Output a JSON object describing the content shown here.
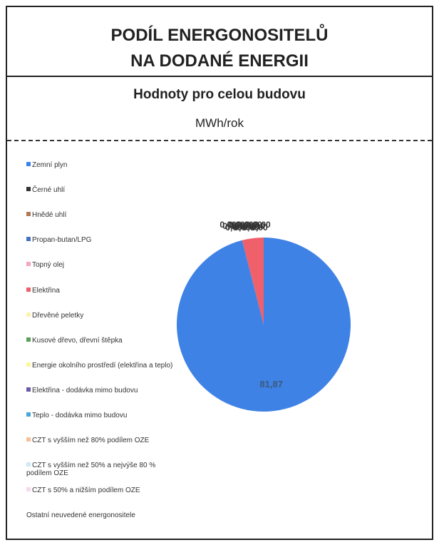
{
  "header": {
    "title_line1": "PODÍL ENERGONOSITELŮ",
    "title_line2": "NA DODANÉ ENERGII"
  },
  "chart_data": {
    "type": "pie",
    "title": "Hodnoty pro celou budovu",
    "subtitle": "MWh/rok",
    "categories": [
      "Zemní plyn",
      "Černé uhlí",
      "Hnědé uhlí",
      "Propan-butan/LPG",
      "Topný olej",
      "Elektřina",
      "Dřevěné peletky",
      "Kusové dřevo, dřevní štěpka",
      "Energie okolního prostředí (elektřina a teplo)",
      "Elektřina - dodávka mimo budovu",
      "Teplo - dodávka mimo budovu",
      "CZT s vyšším než 80% podílem OZE",
      "CZT  s vyšším než 50% a nejvýše 80 % podílem OZE",
      "CZT s 50% a nižším podílem OZE",
      "Ostatní neuvedené energonositele"
    ],
    "values": [
      81.87,
      0,
      0,
      0,
      0,
      3.4,
      0,
      0,
      0,
      0,
      0,
      0,
      0,
      0,
      0
    ],
    "value_labels": [
      "81,87",
      "0,00",
      "0,00",
      "0,00",
      "0,00",
      null,
      "0,00",
      "0,00",
      "0,00",
      "0,00",
      "0,00",
      "0,00",
      "0,00",
      "0,00",
      "0,00"
    ],
    "colors": [
      "#3f82e6",
      "#333333",
      "#b07a5a",
      "#4472c4",
      "#f4a6c8",
      "#f0606a",
      "#fff2b0",
      "#5aa05a",
      "#fff59a",
      "#6a5aa8",
      "#4aa8d8",
      "#f8c09a",
      "#d0e8f8",
      "#f8d8e8",
      null
    ]
  }
}
